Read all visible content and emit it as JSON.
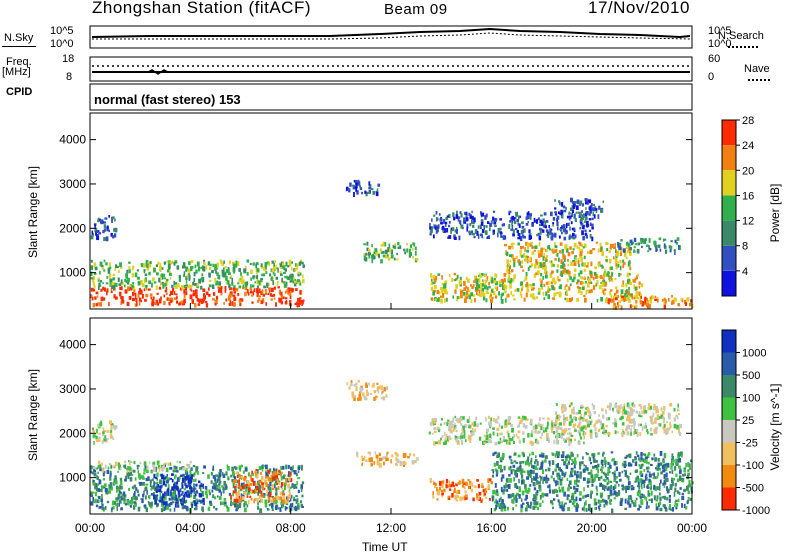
{
  "header": {
    "title": "Zhongshan Station (fitACF)",
    "beam": "Beam 09",
    "date": "17/Nov/2010"
  },
  "top_panels": {
    "nsky_label": "N.Sky",
    "nsearch_label": "N.Search",
    "nsky_ticks": [
      "10^5",
      "10^0"
    ],
    "nsearch_ticks": [
      "10^5",
      "10^0"
    ],
    "freq_label": "Freq.",
    "freq_unit": "[MHz]",
    "freq_ticks": [
      "18",
      "8"
    ],
    "nave_label": "Nave",
    "nave_ticks": [
      "60",
      "0"
    ],
    "cpid_label": "CPID",
    "cpid_value": "normal (fast stereo) 153"
  },
  "time_axis": {
    "label": "Time UT",
    "ticks": [
      "00:00",
      "04:00",
      "08:00",
      "12:00",
      "16:00",
      "20:00",
      "00:00"
    ]
  },
  "chart_data": [
    {
      "type": "heatmap",
      "quantity": "Power",
      "ylabel": "Slant Range [km]",
      "xlabel": "",
      "yticks": [
        1000,
        2000,
        3000,
        4000
      ],
      "ylim": [
        180,
        4600
      ],
      "xlim_hours": [
        0,
        24
      ],
      "colorbar": {
        "label": "Power [dB]",
        "ticks": [
          "4",
          "8",
          "12",
          "16",
          "20",
          "24",
          "28"
        ],
        "colors": [
          "#1010e0",
          "#3050c0",
          "#3a8a6a",
          "#2fb04a",
          "#e0d020",
          "#f08010",
          "#ff2a00"
        ]
      },
      "regions": [
        {
          "t": [
            0.0,
            8.5
          ],
          "r": [
            300,
            700
          ],
          "level": 6
        },
        {
          "t": [
            0.0,
            8.5
          ],
          "r": [
            700,
            1300
          ],
          "level": 3
        },
        {
          "t": [
            0.0,
            1.0
          ],
          "r": [
            1800,
            2300
          ],
          "level": 1
        },
        {
          "t": [
            10.8,
            13.0
          ],
          "r": [
            1300,
            1700
          ],
          "level": 3
        },
        {
          "t": [
            10.2,
            11.5
          ],
          "r": [
            2800,
            3100
          ],
          "level": 1
        },
        {
          "t": [
            13.5,
            20.0
          ],
          "r": [
            1800,
            2400
          ],
          "level": 1
        },
        {
          "t": [
            13.5,
            22.0
          ],
          "r": [
            400,
            1000
          ],
          "level": 4
        },
        {
          "t": [
            16.5,
            21.5
          ],
          "r": [
            1000,
            1700
          ],
          "level": 4
        },
        {
          "t": [
            18.5,
            20.5
          ],
          "r": [
            2300,
            2700
          ],
          "level": 1
        },
        {
          "t": [
            21.0,
            23.5
          ],
          "r": [
            1500,
            1800
          ],
          "level": 2
        },
        {
          "t": [
            20.5,
            24.0
          ],
          "r": [
            250,
            500
          ],
          "level": 5
        }
      ]
    },
    {
      "type": "heatmap",
      "quantity": "Velocity",
      "ylabel": "Slant Range [km]",
      "xlabel": "Time UT",
      "yticks": [
        1000,
        2000,
        3000,
        4000
      ],
      "ylim": [
        180,
        4600
      ],
      "xlim_hours": [
        0,
        24
      ],
      "colorbar": {
        "label": "Velocity [m s^-1]",
        "ticks": [
          "1000",
          "500",
          "100",
          "25",
          "-25",
          "-100",
          "-500",
          "-1000"
        ],
        "colors": [
          "#1030c0",
          "#2a5aaa",
          "#3a8a6a",
          "#40c040",
          "#c8c8c0",
          "#f0c060",
          "#f08a10",
          "#ff2a00"
        ]
      },
      "regions": [
        {
          "t": [
            0.0,
            8.5
          ],
          "r": [
            300,
            1300
          ],
          "level": 2
        },
        {
          "t": [
            0.0,
            1.0
          ],
          "r": [
            1800,
            2300
          ],
          "level": 4
        },
        {
          "t": [
            0.0,
            4.0
          ],
          "r": [
            1200,
            1400
          ],
          "level": 4
        },
        {
          "t": [
            5.5,
            8.0
          ],
          "r": [
            500,
            1200
          ],
          "level": 6
        },
        {
          "t": [
            2.5,
            4.5
          ],
          "r": [
            400,
            1100
          ],
          "level": 0
        },
        {
          "t": [
            10.5,
            13.0
          ],
          "r": [
            1300,
            1600
          ],
          "level": 5
        },
        {
          "t": [
            10.2,
            11.8
          ],
          "r": [
            2800,
            3200
          ],
          "level": 5
        },
        {
          "t": [
            13.5,
            20.0
          ],
          "r": [
            1800,
            2400
          ],
          "level": 4
        },
        {
          "t": [
            13.5,
            16.0
          ],
          "r": [
            500,
            1000
          ],
          "level": 6
        },
        {
          "t": [
            16.0,
            24.0
          ],
          "r": [
            300,
            1600
          ],
          "level": 2
        },
        {
          "t": [
            18.5,
            23.5
          ],
          "r": [
            2000,
            2700
          ],
          "level": 4
        }
      ]
    }
  ]
}
